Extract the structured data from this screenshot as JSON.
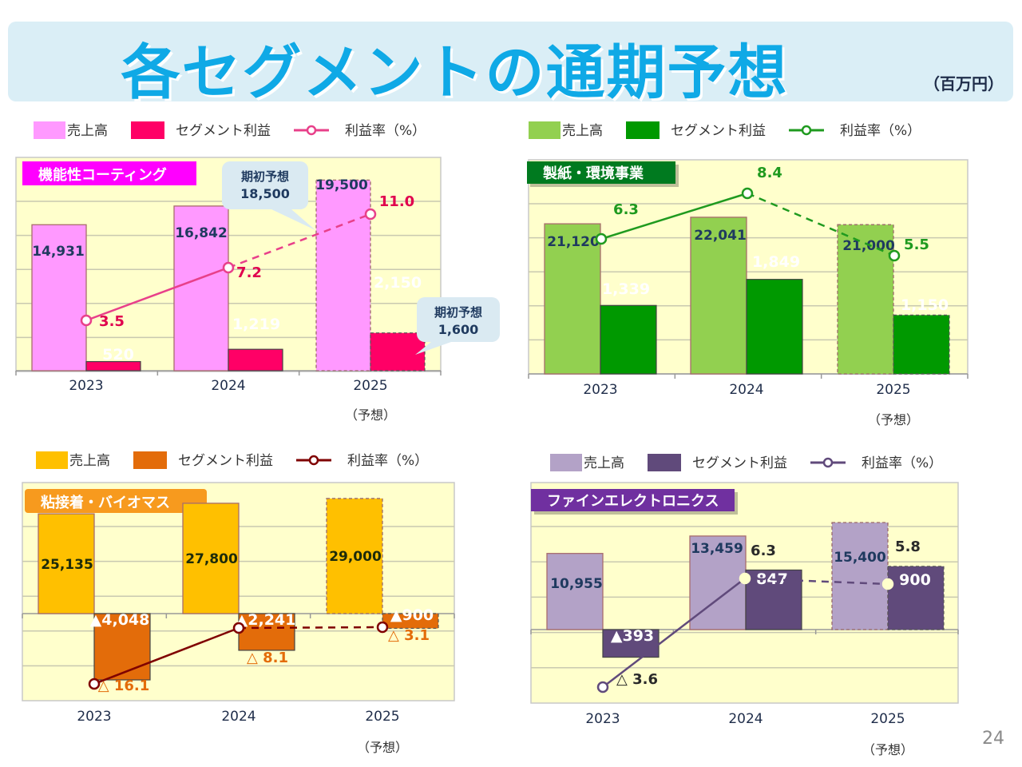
{
  "header": {
    "title": "各セグメントの通期予想",
    "unit": "（百万円）"
  },
  "page_number": "24",
  "chart_data": [
    {
      "type": "bar",
      "id": "coating",
      "title": "機能性コーティング",
      "categories": [
        "2023",
        "2024",
        "2025"
      ],
      "category_sublabels": [
        "",
        "",
        "（予想）"
      ],
      "legend": [
        "売上高",
        "セグメント利益",
        "利益率（%）"
      ],
      "legend_position": "top",
      "forecast_index": 2,
      "series": [
        {
          "name": "売上高",
          "values": [
            14931,
            16842,
            19500
          ],
          "labels": [
            "14,931",
            "16,842",
            "19,500"
          ]
        },
        {
          "name": "セグメント利益",
          "values": [
            520,
            1219,
            2150
          ],
          "labels": [
            "520",
            "1,219",
            "2,150"
          ]
        },
        {
          "name": "利益率（%）",
          "type": "line",
          "values": [
            3.5,
            7.2,
            11.0
          ],
          "labels": [
            "3.5",
            "7.2",
            "11.0"
          ]
        }
      ],
      "callouts": [
        {
          "text": "期初予想",
          "value": "18,500",
          "target": "売上高 2025"
        },
        {
          "text": "期初予想",
          "value": "1,600",
          "target": "セグメント利益 2025"
        }
      ],
      "colors": {
        "sales": "#ff99ff",
        "profit": "#ff0066",
        "line": "#e8408a",
        "label": "#e0004e",
        "title_bg": "#ff00ff"
      },
      "grid": true
    },
    {
      "type": "bar",
      "id": "paper",
      "title": "製紙・環境事業",
      "categories": [
        "2023",
        "2024",
        "2025"
      ],
      "category_sublabels": [
        "",
        "",
        "（予想）"
      ],
      "legend": [
        "売上高",
        "セグメント利益",
        "利益率（%）"
      ],
      "legend_position": "top",
      "forecast_index": 2,
      "series": [
        {
          "name": "売上高",
          "values": [
            21120,
            22041,
            21000
          ],
          "labels": [
            "21,120",
            "22,041",
            "21,000"
          ]
        },
        {
          "name": "セグメント利益",
          "values": [
            1339,
            1849,
            1150
          ],
          "labels": [
            "1,339",
            "1,849",
            "1,150"
          ]
        },
        {
          "name": "利益率（%）",
          "type": "line",
          "values": [
            6.3,
            8.4,
            5.5
          ],
          "labels": [
            "6.3",
            "8.4",
            "5.5"
          ]
        }
      ],
      "colors": {
        "sales": "#92d050",
        "profit": "#009900",
        "line": "#1f9a1f",
        "label": "#1f9a1f",
        "title_bg": "#007a1f"
      },
      "grid": true
    },
    {
      "type": "bar",
      "id": "adhesive",
      "title": "粘接着・バイオマス",
      "categories": [
        "2023",
        "2024",
        "2025"
      ],
      "category_sublabels": [
        "",
        "",
        "（予想）"
      ],
      "legend": [
        "売上高",
        "セグメント利益",
        "利益率（%）"
      ],
      "legend_position": "top",
      "forecast_index": 2,
      "series": [
        {
          "name": "売上高",
          "values": [
            25135,
            27800,
            29000
          ],
          "labels": [
            "25,135",
            "27,800",
            "29,000"
          ]
        },
        {
          "name": "セグメント利益",
          "values": [
            -4048,
            -2241,
            -900
          ],
          "labels": [
            "▲4,048",
            "▲2,241",
            "▲900"
          ]
        },
        {
          "name": "利益率（%）",
          "type": "line",
          "values": [
            -16.1,
            -8.1,
            -3.1
          ],
          "labels": [
            "△ 16.1",
            "△ 8.1",
            "△ 3.1"
          ]
        }
      ],
      "colors": {
        "sales": "#ffc000",
        "profit": "#e36c0a",
        "line": "#7f0000",
        "label": "#e36c0a",
        "title_bg": "#f79a1e"
      },
      "grid": true
    },
    {
      "type": "bar",
      "id": "electronics",
      "title": "ファインエレクトロニクス",
      "categories": [
        "2023",
        "2024",
        "2025"
      ],
      "category_sublabels": [
        "",
        "",
        "（予想）"
      ],
      "legend": [
        "売上高",
        "セグメント利益",
        "利益率（%）"
      ],
      "legend_position": "top",
      "forecast_index": 2,
      "series": [
        {
          "name": "売上高",
          "values": [
            10955,
            13459,
            15400
          ],
          "labels": [
            "10,955",
            "13,459",
            "15,400"
          ]
        },
        {
          "name": "セグメント利益",
          "values": [
            -393,
            847,
            900
          ],
          "labels": [
            "▲393",
            "847",
            "900"
          ]
        },
        {
          "name": "利益率（%）",
          "type": "line",
          "values": [
            -3.6,
            6.3,
            5.8
          ],
          "labels": [
            "△ 3.6",
            "6.3",
            "5.8"
          ]
        }
      ],
      "colors": {
        "sales": "#b3a2c7",
        "profit": "#604a7b",
        "line": "#604a7b",
        "label": "#2a2a2a",
        "title_bg": "#7030a0"
      },
      "grid": true
    }
  ]
}
